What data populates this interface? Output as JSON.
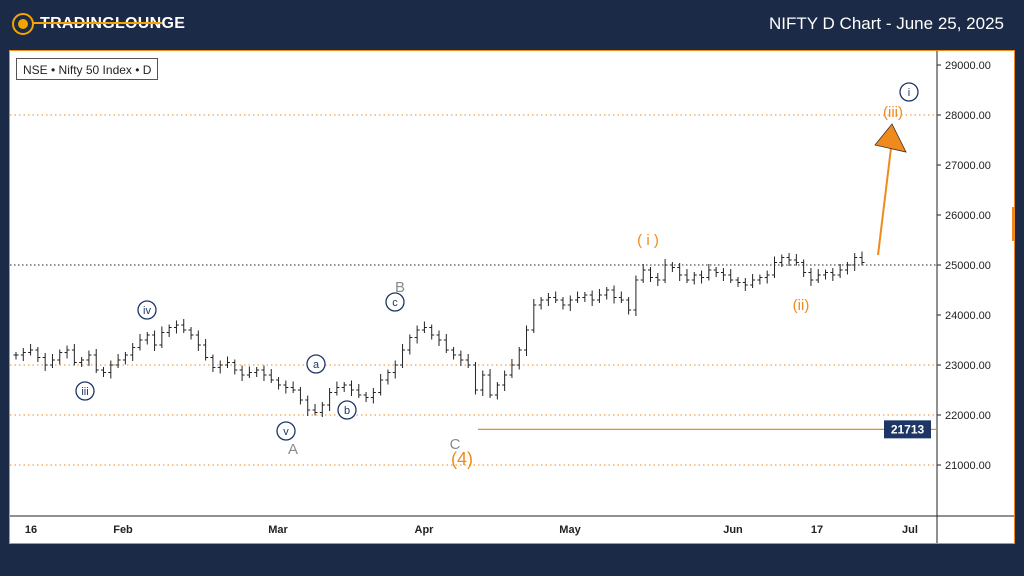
{
  "header": {
    "logo_text": "TradingLounge",
    "chart_title": "NIFTY D Chart - June 25, 2025"
  },
  "symbol": "NSE • Nifty 50 Index • D",
  "colors": {
    "background": "#1b2a47",
    "accent": "#f08a1c",
    "wave_navy": "#1e3666",
    "wave_gray": "#8a8a8a",
    "candle": "#222222"
  },
  "chart_data": {
    "type": "ohlc",
    "ylim": [
      20000,
      29500
    ],
    "y_ticks": [
      "29000.00",
      "28000.00",
      "27000.00",
      "26000.00",
      "25000.00",
      "24000.00",
      "23000.00",
      "22000.00",
      "21000.00"
    ],
    "x_ticks": [
      "16",
      "Feb",
      "Mar",
      "Apr",
      "May",
      "Jun",
      "17",
      "Jul"
    ],
    "reference_lines": [
      {
        "value": 28000,
        "style": "dotted-orange"
      },
      {
        "value": 25000,
        "style": "dotted-black"
      },
      {
        "value": 23000,
        "style": "dotted-orange"
      },
      {
        "value": 22000,
        "style": "dotted-orange"
      },
      {
        "value": 21000,
        "style": "dotted-orange"
      }
    ],
    "support_level": {
      "value": 21713,
      "label": "21713"
    },
    "series": [
      {
        "values": [
          23200,
          23250,
          23300,
          23150,
          23000,
          23100,
          23250,
          23300,
          23050,
          23100,
          23200,
          22900,
          22850,
          23000,
          23100,
          23200,
          23350,
          23500,
          23600,
          23400,
          23650,
          23750,
          23800,
          23700,
          23600,
          23400,
          23150,
          22950,
          23000,
          23050,
          22900,
          22800,
          22850,
          22900,
          22800,
          22700,
          22600,
          22550,
          22500,
          22300,
          22100,
          22050,
          22200,
          22450,
          22550,
          22600,
          22500,
          22400,
          22350,
          22450,
          22700,
          22850,
          23000,
          23300,
          23550,
          23700,
          23750,
          23600,
          23500,
          23300,
          23200,
          23100,
          23000,
          22500,
          22800,
          22400,
          22600,
          22800,
          23000,
          23300,
          23700,
          24200,
          24300,
          24350,
          24300,
          24200,
          24300,
          24350,
          24400,
          24300,
          24400,
          24500,
          24350,
          24300,
          24100,
          24700,
          24900,
          24750,
          24700,
          25000,
          24950,
          24800,
          24700,
          24800,
          24750,
          24900,
          24850,
          24800,
          24700,
          24650,
          24600,
          24700,
          24750,
          24800,
          25050,
          25150,
          25100,
          25050,
          24850,
          24700,
          24800,
          24850,
          24800,
          24900,
          25000,
          25150,
          25050
        ]
      }
    ]
  },
  "annotations": {
    "wave_iii_small": "iii",
    "wave_iv_small": "iv",
    "wave_v_small": "v",
    "wave_a_small": "a",
    "wave_b_small": "b",
    "wave_c_small": "c",
    "wave_A": "A",
    "wave_B": "B",
    "wave_C": "C",
    "wave_4": "(4)",
    "wave_i_orange": "( i )",
    "wave_ii_orange": "(ii)",
    "wave_iii_orange": "(iii)",
    "wave_i_circled": "i"
  }
}
